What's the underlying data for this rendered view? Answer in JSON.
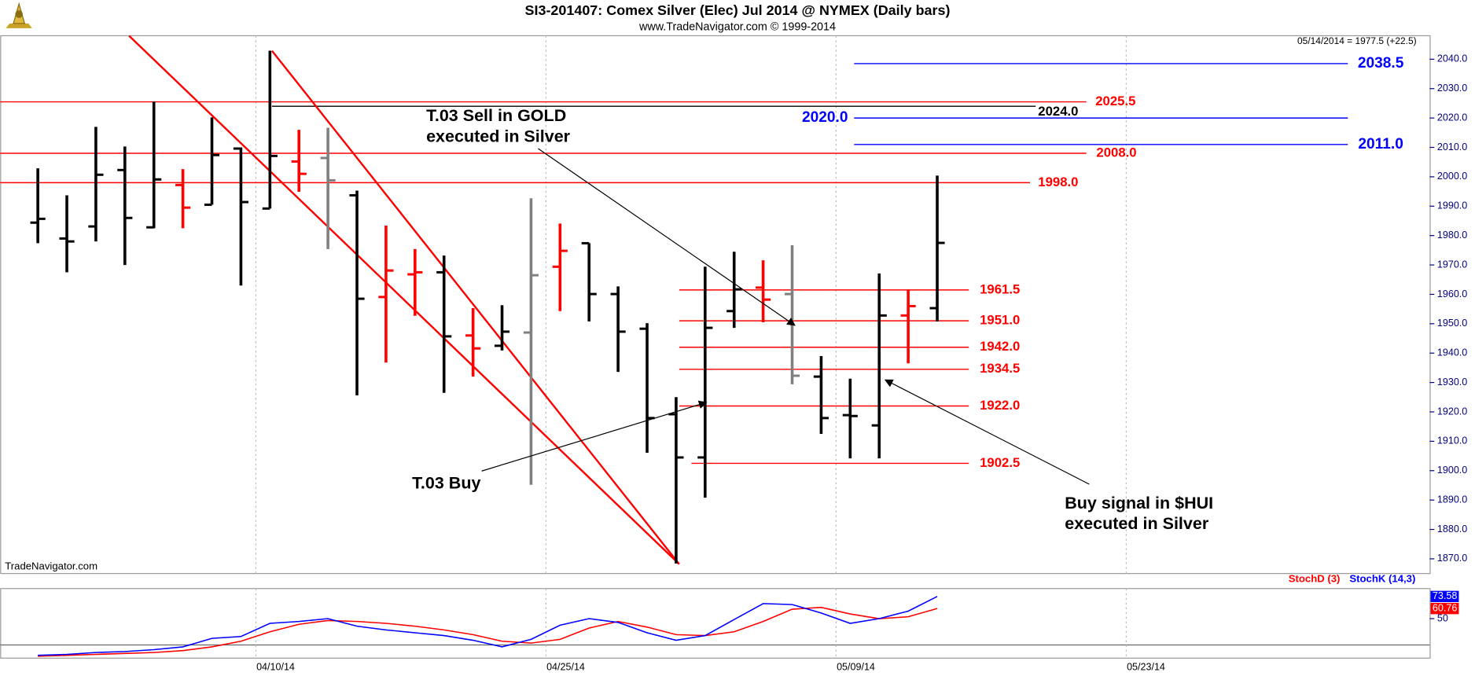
{
  "chart_data": [
    {
      "type": "ohlc",
      "title": "SI3-201407:  Comex Silver (Elec) Jul 2014 @ NYMEX  (Daily bars)",
      "subtitle": "www.TradeNavigator.com © 1999-2014",
      "info": "05/14/2014 = 1977.5 (+22.5)",
      "watermark": "TradeNavigator.com",
      "categories": [
        null,
        null,
        null,
        null,
        null,
        null,
        null,
        null,
        "04/10/14",
        null,
        null,
        null,
        null,
        null,
        null,
        null,
        null,
        null,
        "04/25/14",
        null,
        null,
        null,
        null,
        null,
        null,
        null,
        null,
        null,
        "05/09/14",
        null,
        null,
        null,
        null,
        null,
        null,
        null,
        null,
        null,
        "05/23/14",
        null,
        null,
        null,
        null,
        null,
        null,
        null,
        null,
        null
      ],
      "open": [
        1984.4,
        1979.0,
        1983.1,
        2002.3,
        1982.8,
        1997.2,
        1990.5,
        2009.6,
        1989.2,
        2005.2,
        2006.4,
        1993.7,
        1959.1,
        1966.8,
        1967.5,
        1946.0,
        1942.5,
        1947.0,
        1969.4,
        1977.4,
        1960.1,
        1948.3,
        1919.2,
        1904.5,
        1954.3,
        1962.3,
        1960.1,
        1932.0,
        1918.9,
        1915.4,
        1952.8,
        1955.3,
        null,
        null,
        null,
        null,
        null,
        null,
        null,
        null,
        null,
        null,
        null,
        null,
        null,
        null,
        null,
        null
      ],
      "high": [
        2002.9,
        1993.7,
        2017.0,
        2010.3,
        2025.6,
        2002.6,
        2020.2,
        2010.0,
        2042.9,
        2016.0,
        2016.7,
        1995.3,
        1983.4,
        1975.4,
        1973.2,
        1955.3,
        1956.3,
        1992.7,
        1984.1,
        1977.4,
        1962.7,
        1950.2,
        1925.0,
        1969.4,
        1974.5,
        1971.6,
        1976.7,
        1939.0,
        1931.3,
        1967.1,
        1961.7,
        2000.4,
        null,
        null,
        null,
        null,
        null,
        null,
        null,
        null,
        null,
        null,
        null,
        null,
        null,
        null,
        null,
        null
      ],
      "low": [
        1977.4,
        1967.5,
        1978.0,
        1970.0,
        1982.5,
        1982.5,
        1990.5,
        1963.0,
        1989.2,
        1994.9,
        1975.4,
        1925.6,
        1936.8,
        1952.7,
        1926.5,
        1932.0,
        1940.9,
        1895.2,
        1954.3,
        1950.8,
        1933.6,
        1906.1,
        1868.4,
        1890.8,
        1948.6,
        1950.5,
        1929.4,
        1912.5,
        1904.2,
        1904.2,
        1936.5,
        1950.8,
        null,
        null,
        null,
        null,
        null,
        null,
        null,
        null,
        null,
        null,
        null,
        null,
        null,
        null,
        null,
        null
      ],
      "close": [
        1985.7,
        1978.0,
        2000.7,
        1986.0,
        1999.1,
        1989.5,
        2007.4,
        1991.4,
        2007.1,
        2001.0,
        1998.8,
        1958.5,
        1968.1,
        1967.5,
        1945.7,
        1941.6,
        1947.3,
        1966.5,
        1974.8,
        1960.1,
        1947.3,
        1917.9,
        1904.5,
        1948.6,
        1961.7,
        1958.2,
        1932.3,
        1917.9,
        1918.6,
        1952.8,
        1956.0,
        1977.5,
        null,
        null,
        null,
        null,
        null,
        null,
        null,
        null,
        null,
        null,
        null,
        null,
        null,
        null,
        null,
        null
      ],
      "colors": [
        "#000000",
        "#000000",
        "#000000",
        "#000000",
        "#000000",
        "#ff0000",
        "#000000",
        "#000000",
        "#000000",
        "#ff0000",
        "#808080",
        "#000000",
        "#ff0000",
        "#ff0000",
        "#000000",
        "#ff0000",
        "#000000",
        "#808080",
        "#ff0000",
        "#000000",
        "#000000",
        "#000000",
        "#000000",
        "#000000",
        "#000000",
        "#ff0000",
        "#808080",
        "#000000",
        "#000000",
        "#000000",
        "#ff0000",
        "#000000",
        null,
        null,
        null,
        null,
        null,
        null,
        null,
        null,
        null,
        null,
        null,
        null,
        null,
        null,
        null,
        null
      ],
      "ylim": [
        1865,
        2048
      ],
      "yticks": [
        {
          "value": 1870,
          "label": "1870.0"
        },
        {
          "value": 1880,
          "label": "1880.0"
        },
        {
          "value": 1890,
          "label": "1890.0"
        },
        {
          "value": 1900,
          "label": "1900.0"
        },
        {
          "value": 1910,
          "label": "1910.0"
        },
        {
          "value": 1920,
          "label": "1920.0"
        },
        {
          "value": 1930,
          "label": "1930.0"
        },
        {
          "value": 1940,
          "label": "1940.0"
        },
        {
          "value": 1950,
          "label": "1950.0"
        },
        {
          "value": 1960,
          "label": "1960.0"
        },
        {
          "value": 1970,
          "label": "1970.0"
        },
        {
          "value": 1980,
          "label": "1980.0"
        },
        {
          "value": 1990,
          "label": "1990.0"
        },
        {
          "value": 2000,
          "label": "2000.0"
        },
        {
          "value": 2010,
          "label": "2010.0"
        },
        {
          "value": 2020,
          "label": "2020.0"
        },
        {
          "value": 2030,
          "label": "2030.0"
        },
        {
          "value": 2040,
          "label": "2040.0"
        }
      ],
      "levels": [
        {
          "value": 2038.5,
          "label": "2038.5",
          "color": "#0000ff"
        },
        {
          "value": 2025.5,
          "label": "2025.5",
          "color": "#ff0000"
        },
        {
          "value": 2024.0,
          "label": "2024.0",
          "color": "#000000"
        },
        {
          "value": 2020.0,
          "label": "2020.0",
          "color": "#0000ff"
        },
        {
          "value": 2011.0,
          "label": "2011.0",
          "color": "#0000ff"
        },
        {
          "value": 2008.0,
          "label": "2008.0",
          "color": "#ff0000"
        },
        {
          "value": 1998.0,
          "label": "1998.0",
          "color": "#ff0000"
        },
        {
          "value": 1961.5,
          "label": "1961.5",
          "color": "#ff0000"
        },
        {
          "value": 1951.0,
          "label": "1951.0",
          "color": "#ff0000"
        },
        {
          "value": 1942.0,
          "label": "1942.0",
          "color": "#ff0000"
        },
        {
          "value": 1934.5,
          "label": "1934.5",
          "color": "#ff0000"
        },
        {
          "value": 1922.0,
          "label": "1922.0",
          "color": "#ff0000"
        },
        {
          "value": 1902.5,
          "label": "1902.5",
          "color": "#ff0000"
        }
      ],
      "annotations": [
        {
          "lines": [
            "T.03 Sell in GOLD",
            "executed in Silver"
          ]
        },
        {
          "lines": [
            "T.03 Buy"
          ]
        },
        {
          "lines": [
            "Buy signal in $HUI",
            "executed in Silver"
          ]
        }
      ],
      "grid": true
    },
    {
      "type": "line",
      "ylim": [
        8,
        82
      ],
      "yticks": [
        50
      ],
      "legend": "top-right",
      "series": [
        {
          "name": "StochD (3)",
          "color": "#ff0000",
          "values": [
            10,
            11,
            12,
            13,
            14,
            16,
            20,
            26,
            36,
            44,
            48,
            47,
            45,
            42,
            38,
            33,
            26,
            24,
            28,
            40,
            47,
            41,
            33,
            32,
            36,
            47,
            60,
            62,
            55,
            50,
            52,
            60.76,
            null,
            null,
            null,
            null,
            null,
            null,
            null,
            null,
            null,
            null,
            null,
            null,
            null,
            null,
            null,
            null
          ]
        },
        {
          "name": "StochK (14,3)",
          "color": "#0000ff",
          "values": [
            11,
            12,
            14,
            15,
            17,
            20,
            29,
            31,
            45,
            47,
            50,
            42,
            38,
            35,
            32,
            27,
            20,
            28,
            43,
            50,
            46,
            35,
            27,
            32,
            49,
            66,
            65,
            56,
            45,
            50,
            58,
            73.58,
            null,
            null,
            null,
            null,
            null,
            null,
            null,
            null,
            null,
            null,
            null,
            null,
            null,
            null,
            null,
            null
          ]
        }
      ]
    }
  ]
}
